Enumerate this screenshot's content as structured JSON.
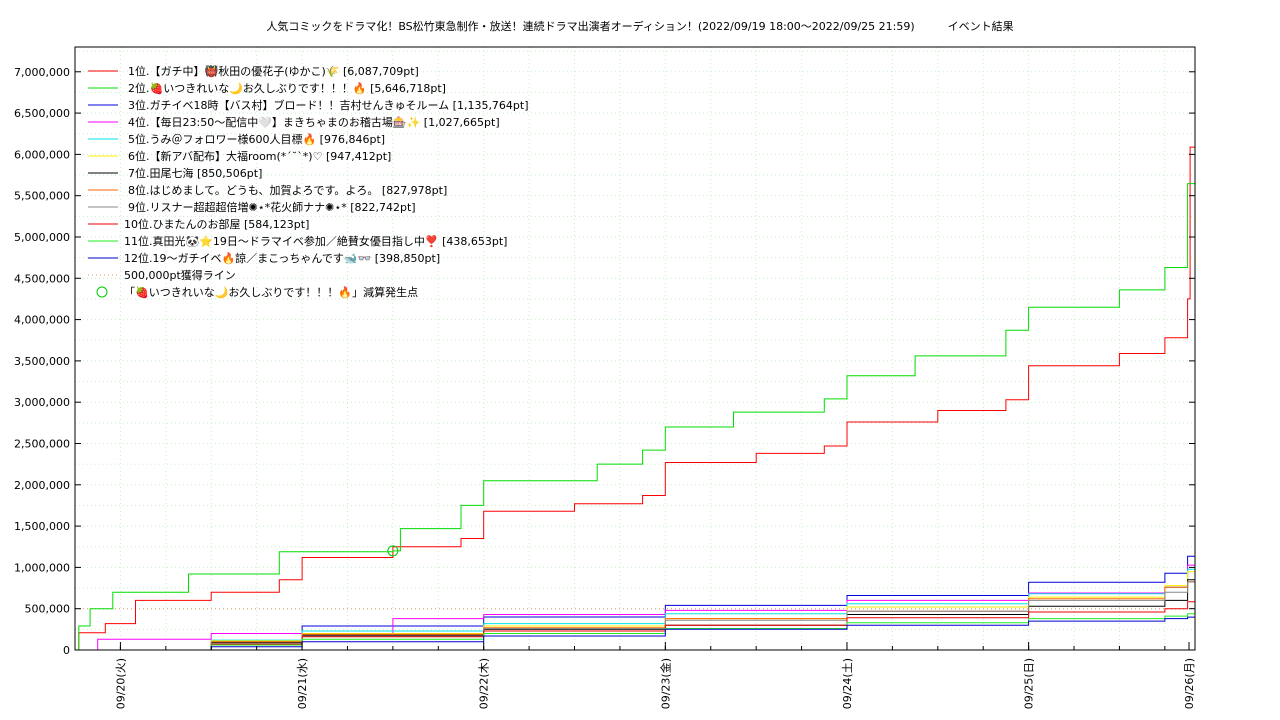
{
  "chart_data": {
    "type": "line",
    "title": "人気コミックをドラマ化！BS松竹東急制作・放送！連続ドラマ出演者オーディション！(2022/09/19 18:00〜2022/09/25 21:59)　　　イベント結果",
    "xlabel": "",
    "ylabel": "",
    "x_range": [
      "2022-09-19 18:00",
      "2022-09-25 21:59"
    ],
    "ylim": [
      0,
      7300000
    ],
    "grid": true,
    "legend_position": "top-left",
    "y_ticks": [
      "0",
      "500,000",
      "1,000,000",
      "1,500,000",
      "2,000,000",
      "2,500,000",
      "3,000,000",
      "3,500,000",
      "4,000,000",
      "4,500,000",
      "5,000,000",
      "5,500,000",
      "6,000,000",
      "6,500,000",
      "7,000,000"
    ],
    "y_tick_values": [
      0,
      500000,
      1000000,
      1500000,
      2000000,
      2500000,
      3000000,
      3500000,
      4000000,
      4500000,
      5000000,
      5500000,
      6000000,
      6500000,
      7000000
    ],
    "x_ticks": [
      {
        "date": "2022-09-20 00:00",
        "label": "09/20(火)"
      },
      {
        "date": "2022-09-21 00:00",
        "label": "09/21(水)"
      },
      {
        "date": "2022-09-22 00:00",
        "label": "09/22(木)"
      },
      {
        "date": "2022-09-23 00:00",
        "label": "09/23(金)"
      },
      {
        "date": "2022-09-24 00:00",
        "label": "09/24(土)"
      },
      {
        "date": "2022-09-25 00:00",
        "label": "09/25(日)"
      },
      {
        "date": "2022-09-26 00:00",
        "label": "09/26(月)"
      }
    ],
    "series": [
      {
        "name": "1位.【ガチ中】👹秋田の優花子(ゆかこ)🌾 [6,087,709pt]",
        "color": "#ff0000",
        "points": [
          [
            "2022-09-19 18:00",
            0
          ],
          [
            "2022-09-19 18:30",
            210000
          ],
          [
            "2022-09-19 22:00",
            320000
          ],
          [
            "2022-09-20 02:00",
            600000
          ],
          [
            "2022-09-20 12:00",
            700000
          ],
          [
            "2022-09-20 21:00",
            850000
          ],
          [
            "2022-09-21 00:00",
            1120000
          ],
          [
            "2022-09-21 12:00",
            1250000
          ],
          [
            "2022-09-21 21:00",
            1350000
          ],
          [
            "2022-09-22 00:00",
            1680000
          ],
          [
            "2022-09-22 12:00",
            1770000
          ],
          [
            "2022-09-22 21:00",
            1870000
          ],
          [
            "2022-09-23 00:00",
            2270000
          ],
          [
            "2022-09-23 12:00",
            2380000
          ],
          [
            "2022-09-23 21:00",
            2470000
          ],
          [
            "2022-09-24 00:00",
            2760000
          ],
          [
            "2022-09-24 12:00",
            2900000
          ],
          [
            "2022-09-24 21:00",
            3030000
          ],
          [
            "2022-09-25 00:00",
            3440000
          ],
          [
            "2022-09-25 12:00",
            3590000
          ],
          [
            "2022-09-25 18:00",
            3780000
          ],
          [
            "2022-09-25 21:00",
            4250000
          ],
          [
            "2022-09-25 21:20",
            6087709
          ],
          [
            "2022-09-25 21:59",
            6087709
          ]
        ]
      },
      {
        "name": "2位.🍓いつきれいな🌙お久しぶりです！！！🔥 [5,646,718pt]",
        "color": "#00dd00",
        "points": [
          [
            "2022-09-19 18:00",
            0
          ],
          [
            "2022-09-19 18:30",
            290000
          ],
          [
            "2022-09-19 20:00",
            500000
          ],
          [
            "2022-09-19 23:00",
            700000
          ],
          [
            "2022-09-20 09:00",
            920000
          ],
          [
            "2022-09-20 21:00",
            1190000
          ],
          [
            "2022-09-21 12:00",
            1200000
          ],
          [
            "2022-09-21 13:00",
            1470000
          ],
          [
            "2022-09-21 21:00",
            1750000
          ],
          [
            "2022-09-22 00:00",
            2050000
          ],
          [
            "2022-09-22 15:00",
            2250000
          ],
          [
            "2022-09-22 21:00",
            2420000
          ],
          [
            "2022-09-23 00:00",
            2700000
          ],
          [
            "2022-09-23 09:00",
            2880000
          ],
          [
            "2022-09-23 21:00",
            3040000
          ],
          [
            "2022-09-24 00:00",
            3320000
          ],
          [
            "2022-09-24 09:00",
            3560000
          ],
          [
            "2022-09-24 21:00",
            3870000
          ],
          [
            "2022-09-25 00:00",
            4150000
          ],
          [
            "2022-09-25 12:00",
            4360000
          ],
          [
            "2022-09-25 18:00",
            4630000
          ],
          [
            "2022-09-25 21:00",
            5646718
          ],
          [
            "2022-09-25 21:59",
            5646718
          ]
        ]
      },
      {
        "name": "3位.ガチイベ18時【バス村】ブロード！！吉村せんきゅそルーム [1,135,764pt]",
        "color": "#0000dd",
        "points": [
          [
            "2022-09-19 18:00",
            0
          ],
          [
            "2022-09-20 12:00",
            100000
          ],
          [
            "2022-09-21 00:00",
            290000
          ],
          [
            "2022-09-22 00:00",
            400000
          ],
          [
            "2022-09-23 00:00",
            540000
          ],
          [
            "2022-09-24 00:00",
            660000
          ],
          [
            "2022-09-25 00:00",
            820000
          ],
          [
            "2022-09-25 18:00",
            930000
          ],
          [
            "2022-09-25 21:00",
            1135764
          ],
          [
            "2022-09-25 21:59",
            1135764
          ]
        ]
      },
      {
        "name": "4位.【毎日23:50〜配信中🤍】まきちゃまのお稽古場🎰✨ [1,027,665pt]",
        "color": "#ff00ff",
        "points": [
          [
            "2022-09-19 18:00",
            0
          ],
          [
            "2022-09-19 21:00",
            130000
          ],
          [
            "2022-09-20 12:00",
            200000
          ],
          [
            "2022-09-21 12:00",
            380000
          ],
          [
            "2022-09-22 00:00",
            430000
          ],
          [
            "2022-09-23 00:00",
            480000
          ],
          [
            "2022-09-24 00:00",
            600000
          ],
          [
            "2022-09-25 00:00",
            690000
          ],
          [
            "2022-09-25 18:00",
            760000
          ],
          [
            "2022-09-25 21:00",
            1027665
          ],
          [
            "2022-09-25 21:59",
            1027665
          ]
        ]
      },
      {
        "name": "5位.うみ＠フォロワー様600人目標🔥 [976,846pt]",
        "color": "#00e5e5",
        "points": [
          [
            "2022-09-19 18:00",
            0
          ],
          [
            "2022-09-20 12:00",
            120000
          ],
          [
            "2022-09-21 00:00",
            230000
          ],
          [
            "2022-09-22 00:00",
            320000
          ],
          [
            "2022-09-23 00:00",
            440000
          ],
          [
            "2022-09-24 00:00",
            560000
          ],
          [
            "2022-09-25 00:00",
            680000
          ],
          [
            "2022-09-25 18:00",
            760000
          ],
          [
            "2022-09-25 21:00",
            976846
          ],
          [
            "2022-09-25 21:59",
            976846
          ]
        ]
      },
      {
        "name": "6位.【新アバ配布】大福room(*´˘`*)♡ [947,412pt]",
        "color": "#ffee00",
        "points": [
          [
            "2022-09-19 18:00",
            0
          ],
          [
            "2022-09-20 12:00",
            110000
          ],
          [
            "2022-09-21 00:00",
            200000
          ],
          [
            "2022-09-22 00:00",
            290000
          ],
          [
            "2022-09-23 00:00",
            380000
          ],
          [
            "2022-09-24 00:00",
            520000
          ],
          [
            "2022-09-25 00:00",
            640000
          ],
          [
            "2022-09-25 18:00",
            780000
          ],
          [
            "2022-09-25 21:00",
            947412
          ],
          [
            "2022-09-25 21:59",
            947412
          ]
        ]
      },
      {
        "name": "7位.田尾七海 [850,506pt]",
        "color": "#000000",
        "points": [
          [
            "2022-09-19 18:00",
            0
          ],
          [
            "2022-09-20 12:00",
            90000
          ],
          [
            "2022-09-21 00:00",
            180000
          ],
          [
            "2022-09-22 00:00",
            250000
          ],
          [
            "2022-09-23 00:00",
            300000
          ],
          [
            "2022-09-24 00:00",
            430000
          ],
          [
            "2022-09-25 00:00",
            530000
          ],
          [
            "2022-09-25 18:00",
            600000
          ],
          [
            "2022-09-25 21:00",
            850506
          ],
          [
            "2022-09-25 21:59",
            850506
          ]
        ]
      },
      {
        "name": "8位.はじめまして。どうも、加賀よろです。よろ。 [827,978pt]",
        "color": "#ff6600",
        "points": [
          [
            "2022-09-19 18:00",
            0
          ],
          [
            "2022-09-20 12:00",
            100000
          ],
          [
            "2022-09-21 00:00",
            190000
          ],
          [
            "2022-09-22 00:00",
            270000
          ],
          [
            "2022-09-23 00:00",
            380000
          ],
          [
            "2022-09-24 00:00",
            470000
          ],
          [
            "2022-09-25 00:00",
            620000
          ],
          [
            "2022-09-25 18:00",
            760000
          ],
          [
            "2022-09-25 21:00",
            827978
          ],
          [
            "2022-09-25 21:59",
            827978
          ]
        ]
      },
      {
        "name": "9位.リスナー超超超倍増✺⋆*花火師ナナ✺⋆* [822,742pt]",
        "color": "#888888",
        "points": [
          [
            "2022-09-19 18:00",
            0
          ],
          [
            "2022-09-20 12:00",
            80000
          ],
          [
            "2022-09-21 00:00",
            170000
          ],
          [
            "2022-09-22 00:00",
            260000
          ],
          [
            "2022-09-23 00:00",
            360000
          ],
          [
            "2022-09-24 00:00",
            470000
          ],
          [
            "2022-09-25 00:00",
            600000
          ],
          [
            "2022-09-25 18:00",
            700000
          ],
          [
            "2022-09-25 21:00",
            822742
          ],
          [
            "2022-09-25 21:59",
            822742
          ]
        ]
      },
      {
        "name": "10位.ひまたんのお部屋 [584,123pt]",
        "color": "#ee0000",
        "points": [
          [
            "2022-09-19 18:00",
            0
          ],
          [
            "2022-09-20 12:00",
            70000
          ],
          [
            "2022-09-21 00:00",
            160000
          ],
          [
            "2022-09-22 00:00",
            230000
          ],
          [
            "2022-09-23 00:00",
            300000
          ],
          [
            "2022-09-24 00:00",
            390000
          ],
          [
            "2022-09-25 00:00",
            460000
          ],
          [
            "2022-09-25 18:00",
            500000
          ],
          [
            "2022-09-25 21:00",
            584123
          ],
          [
            "2022-09-25 21:59",
            584123
          ]
        ]
      },
      {
        "name": "11位.真田光🐼⭐19日〜ドラマイベ参加／絶賛女優目指し中❣️ [438,653pt]",
        "color": "#22ee22",
        "points": [
          [
            "2022-09-19 18:00",
            0
          ],
          [
            "2022-09-20 12:00",
            60000
          ],
          [
            "2022-09-21 00:00",
            130000
          ],
          [
            "2022-09-22 00:00",
            200000
          ],
          [
            "2022-09-23 00:00",
            260000
          ],
          [
            "2022-09-24 00:00",
            330000
          ],
          [
            "2022-09-25 00:00",
            380000
          ],
          [
            "2022-09-25 18:00",
            410000
          ],
          [
            "2022-09-25 21:00",
            438653
          ],
          [
            "2022-09-25 21:59",
            438653
          ]
        ]
      },
      {
        "name": "12位.19〜ガチイベ🔥諒／まこっちゃんです🐋👓 [398,850pt]",
        "color": "#0000cc",
        "points": [
          [
            "2022-09-19 18:00",
            0
          ],
          [
            "2022-09-20 12:00",
            40000
          ],
          [
            "2022-09-21 00:00",
            100000
          ],
          [
            "2022-09-22 00:00",
            170000
          ],
          [
            "2022-09-23 00:00",
            250000
          ],
          [
            "2022-09-24 00:00",
            300000
          ],
          [
            "2022-09-25 00:00",
            350000
          ],
          [
            "2022-09-25 18:00",
            380000
          ],
          [
            "2022-09-25 21:00",
            398850
          ],
          [
            "2022-09-25 21:59",
            398850
          ]
        ]
      }
    ],
    "threshold_line": {
      "name": "500,000pt獲得ライン",
      "value": 500000,
      "color": "#e0a060"
    },
    "marker": {
      "name": "「🍓いつきれいな🌙お久しぶりです！！！🔥」減算発生点",
      "date": "2022-09-21 12:00",
      "value": 1200000,
      "color": "#00cc00"
    }
  }
}
